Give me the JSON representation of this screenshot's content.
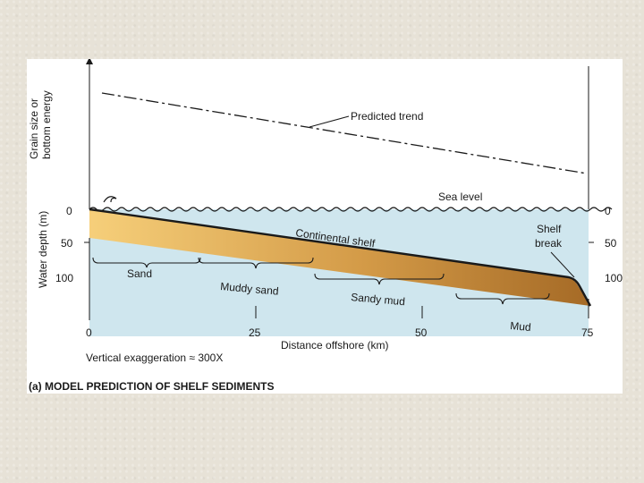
{
  "diagram": {
    "top_axis_label_line1": "Grain size or",
    "top_axis_label_line2": "bottom energy",
    "trend_label": "Predicted trend",
    "sea_level_label": "Sea level",
    "depth_axis_label": "Water depth (m)",
    "depth_ticks_left": [
      "0",
      "50",
      "100"
    ],
    "depth_ticks_right": [
      "0",
      "50",
      "100"
    ],
    "shelf_label": "Continental shelf",
    "shelf_break_line1": "Shelf",
    "shelf_break_line2": "break",
    "zones": [
      "Sand",
      "Muddy sand",
      "Sandy mud",
      "Mud"
    ],
    "distance_ticks": [
      "0",
      "25",
      "50",
      "75"
    ],
    "distance_axis_label": "Distance offshore (km)",
    "exaggeration_note": "Vertical exaggeration ≈ 300X",
    "caption": "(a) MODEL PREDICTION OF SHELF SEDIMENTS",
    "colors": {
      "water": "#cfe6ee",
      "sediment_light": "#f6cf7a",
      "sediment_dark": "#a56a26",
      "lines": "#1a1a1a"
    }
  }
}
